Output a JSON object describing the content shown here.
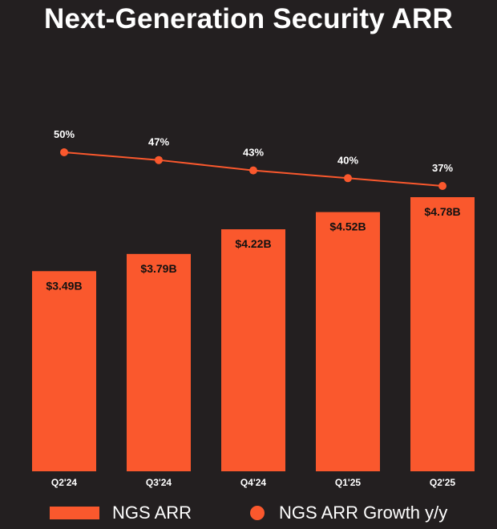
{
  "title": "Next-Generation Security ARR",
  "colors": {
    "background": "#231f20",
    "accent": "#fa582d",
    "text": "#ffffff",
    "bar_label": "#111111"
  },
  "chart_data": {
    "type": "bar",
    "title": "Next-Generation Security ARR",
    "categories": [
      "Q2'24",
      "Q3'24",
      "Q4'24",
      "Q1'25",
      "Q2'25"
    ],
    "series": [
      {
        "name": "NGS ARR",
        "type": "bar",
        "unit": "$B",
        "values": [
          3.49,
          3.79,
          4.22,
          4.52,
          4.78
        ],
        "labels": [
          "$3.49B",
          "$3.79B",
          "$4.22B",
          "$4.52B",
          "$4.78B"
        ]
      },
      {
        "name": "NGS ARR Growth y/y",
        "type": "line",
        "unit": "%",
        "values": [
          50,
          47,
          43,
          40,
          37
        ],
        "labels": [
          "50%",
          "47%",
          "43%",
          "40%",
          "37%"
        ]
      }
    ],
    "ylim": [
      0,
      4.78
    ],
    "grid": false,
    "legend_position": "bottom"
  },
  "legend": {
    "bar_label": "NGS ARR",
    "line_label": "NGS ARR Growth y/y"
  }
}
